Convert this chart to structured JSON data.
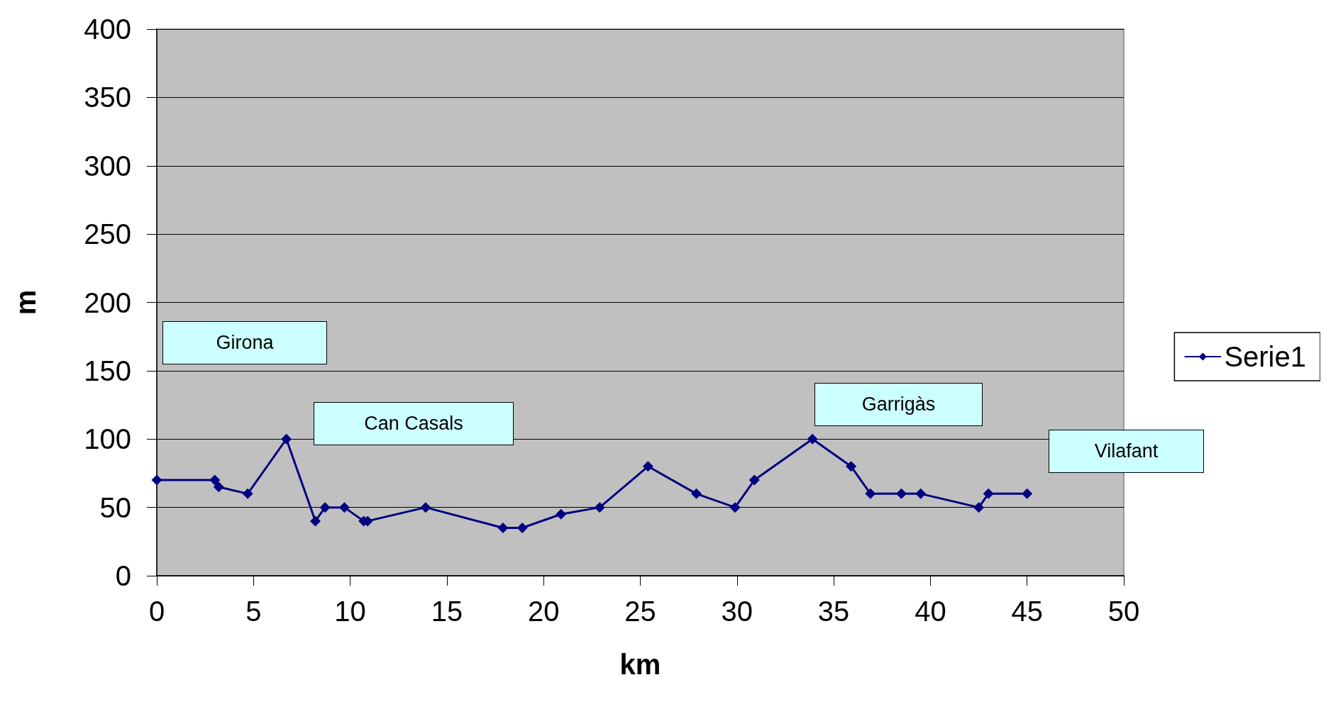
{
  "chart_data": {
    "type": "line",
    "xlabel": "km",
    "ylabel": "m",
    "x": [
      0,
      3,
      3.2,
      4.7,
      6.7,
      8.2,
      8.7,
      9.7,
      10.7,
      10.9,
      13.9,
      17.9,
      18.9,
      20.9,
      22.9,
      25.4,
      27.9,
      29.9,
      30.9,
      33.9,
      35.9,
      36.9,
      38.5,
      39.5,
      42.5,
      43,
      45
    ],
    "series": [
      {
        "name": "Serie1",
        "color": "#000080",
        "values": [
          70,
          70,
          65,
          60,
          100,
          40,
          50,
          50,
          40,
          40,
          50,
          35,
          35,
          45,
          50,
          80,
          60,
          50,
          70,
          100,
          80,
          60,
          60,
          60,
          50,
          60,
          60
        ]
      }
    ],
    "xlim": [
      0,
      50
    ],
    "xticks": [
      0,
      5,
      10,
      15,
      20,
      25,
      30,
      35,
      40,
      45,
      50
    ],
    "ylim": [
      0,
      400
    ],
    "yticks": [
      0,
      50,
      100,
      150,
      200,
      250,
      300,
      350,
      400
    ],
    "grid": "y",
    "legend": "right",
    "marker": "diamond",
    "line_style": "solid",
    "annotations": [
      "Girona",
      "Can Casals",
      "Garrigàs",
      "Vilafant"
    ]
  }
}
